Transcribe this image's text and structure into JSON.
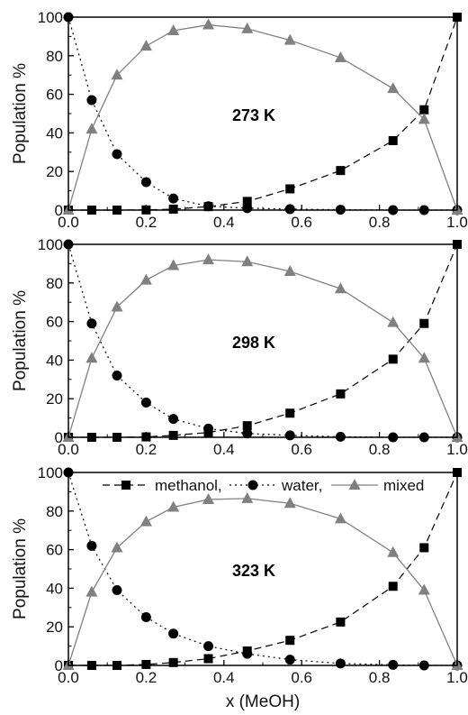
{
  "colors": {
    "methanol": "#000000",
    "water": "#000000",
    "mixed": "#808080",
    "frame": "#000000"
  },
  "legend": {
    "methanol_label": "methanol,",
    "water_label": "water,",
    "mixed_label": "mixed"
  },
  "chart_data": [
    {
      "type": "line",
      "annotation": "273 K",
      "xlabel": "",
      "ylabel": "Population %",
      "xlim": [
        0,
        1
      ],
      "ylim": [
        0,
        100
      ],
      "xticks": [
        "0.0",
        "0.2",
        "0.4",
        "0.6",
        "0.8",
        "1.0"
      ],
      "yticks": [
        "0",
        "20",
        "40",
        "60",
        "80",
        "100"
      ],
      "x": [
        0,
        0.06,
        0.125,
        0.2,
        0.27,
        0.36,
        0.46,
        0.57,
        0.7,
        0.835,
        0.915,
        1.0
      ],
      "series": [
        {
          "key": "methanol",
          "marker": "square",
          "dash": "8,5",
          "values": [
            0,
            0,
            0,
            0.1,
            0.5,
            1.8,
            4.5,
            11,
            20.5,
            36,
            52,
            100
          ]
        },
        {
          "key": "water",
          "marker": "circle",
          "dash": "2,4",
          "values": [
            100,
            57,
            29,
            14.5,
            6,
            2,
            1,
            0.5,
            0.2,
            0,
            0,
            0
          ]
        },
        {
          "key": "mixed",
          "marker": "triangle",
          "dash": "",
          "values": [
            0,
            42,
            70,
            85,
            93,
            96,
            94,
            88,
            79,
            63,
            47,
            0
          ]
        }
      ]
    },
    {
      "type": "line",
      "annotation": "298 K",
      "xlabel": "",
      "ylabel": "Population %",
      "xlim": [
        0,
        1
      ],
      "ylim": [
        0,
        100
      ],
      "xticks": [
        "0.0",
        "0.2",
        "0.4",
        "0.6",
        "0.8",
        "1.0"
      ],
      "yticks": [
        "0",
        "20",
        "40",
        "60",
        "80",
        "100"
      ],
      "x": [
        0,
        0.06,
        0.125,
        0.2,
        0.27,
        0.36,
        0.46,
        0.57,
        0.7,
        0.835,
        0.915,
        1.0
      ],
      "series": [
        {
          "key": "methanol",
          "marker": "square",
          "dash": "8,5",
          "values": [
            0,
            0,
            0,
            0.2,
            1,
            2.5,
            6,
            12.5,
            22.5,
            40.5,
            59,
            100
          ]
        },
        {
          "key": "water",
          "marker": "circle",
          "dash": "2,4",
          "values": [
            100,
            59,
            32,
            18,
            9.5,
            4.5,
            2,
            1,
            0.3,
            0,
            0,
            0
          ]
        },
        {
          "key": "mixed",
          "marker": "triangle",
          "dash": "",
          "values": [
            0,
            41,
            67.5,
            81.5,
            89,
            92,
            91,
            86,
            77,
            59.5,
            41,
            0
          ]
        }
      ]
    },
    {
      "type": "line",
      "annotation": "323 K",
      "xlabel": "x (MeOH)",
      "ylabel": "Population %",
      "xlim": [
        0,
        1
      ],
      "ylim": [
        0,
        100
      ],
      "xticks": [
        "0.0",
        "0.2",
        "0.4",
        "0.6",
        "0.8",
        "1.0"
      ],
      "yticks": [
        "0",
        "20",
        "40",
        "60",
        "80",
        "100"
      ],
      "legend": "top",
      "x": [
        0,
        0.06,
        0.125,
        0.2,
        0.27,
        0.36,
        0.46,
        0.57,
        0.7,
        0.835,
        0.915,
        1.0
      ],
      "series": [
        {
          "key": "methanol",
          "marker": "square",
          "dash": "8,5",
          "values": [
            0,
            0,
            0,
            0.5,
            1.5,
            3.5,
            7.5,
            13,
            22.5,
            41,
            61,
            100
          ]
        },
        {
          "key": "water",
          "marker": "circle",
          "dash": "2,4",
          "values": [
            100,
            62,
            39,
            25,
            16.5,
            10,
            6,
            3,
            1,
            0.3,
            0,
            0
          ]
        },
        {
          "key": "mixed",
          "marker": "triangle",
          "dash": "",
          "values": [
            0,
            38,
            61,
            74.5,
            82,
            86,
            86.5,
            84,
            76,
            58.5,
            39,
            0
          ]
        }
      ]
    }
  ]
}
